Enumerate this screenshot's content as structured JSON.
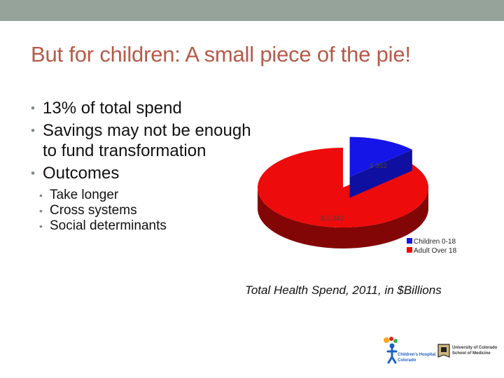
{
  "slide": {
    "title": "But for children:  A small piece of the pie!",
    "bullets": [
      "13% of total spend",
      "Savings may not be enough to fund transformation",
      "Outcomes"
    ],
    "sub_bullets": [
      "Take longer",
      "Cross systems",
      "Social determinants"
    ],
    "caption": "Total Health Spend, 2011, in $Billions"
  },
  "logos": {
    "hospital_line1": "Children's Hospital",
    "hospital_line2": "Colorado",
    "university_line1": "University of Colorado",
    "university_line2": "School of Medicine"
  },
  "colors": {
    "title": "#b65a48",
    "topbar": "#96a39a",
    "children": "#1515e8",
    "adult": "#ee0b0b"
  },
  "chart_data": {
    "type": "pie",
    "title": "",
    "categories": [
      "Children 0-18",
      "Adult Over 18"
    ],
    "values": [
      352,
      2342
    ],
    "data_labels": [
      "$ 352",
      "$ 2,342"
    ],
    "colors": [
      "#1515e8",
      "#ee0b0b"
    ],
    "legend_position": "bottom-right",
    "exploded": "Children 0-18"
  }
}
